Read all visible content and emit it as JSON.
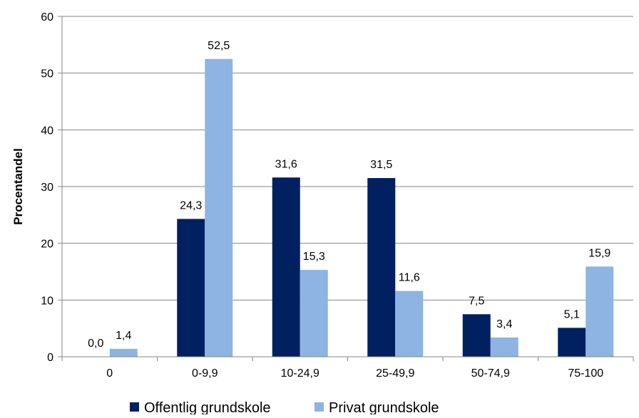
{
  "chart_data": {
    "type": "bar",
    "title": "",
    "xlabel": "",
    "ylabel": "Procentandel",
    "ylim": [
      0,
      60
    ],
    "yticks": [
      0,
      10,
      20,
      30,
      40,
      50,
      60
    ],
    "grid": true,
    "legend_position": "bottom",
    "categories": [
      "0",
      "0-9,9",
      "10-24,9",
      "25-49,9",
      "50-74,9",
      "75-100"
    ],
    "series": [
      {
        "name": "Offentlig grundskole",
        "color": "#002060",
        "values": [
          0.0,
          24.3,
          31.6,
          31.5,
          7.5,
          5.1
        ],
        "labels": [
          "0,0",
          "24,3",
          "31,6",
          "31,5",
          "7,5",
          "5,1"
        ]
      },
      {
        "name": "Privat grundskole",
        "color": "#8EB4E3",
        "values": [
          1.4,
          52.5,
          15.3,
          11.6,
          3.4,
          15.9
        ],
        "labels": [
          "1,4",
          "52,5",
          "15,3",
          "11,6",
          "3,4",
          "15,9"
        ]
      }
    ]
  }
}
